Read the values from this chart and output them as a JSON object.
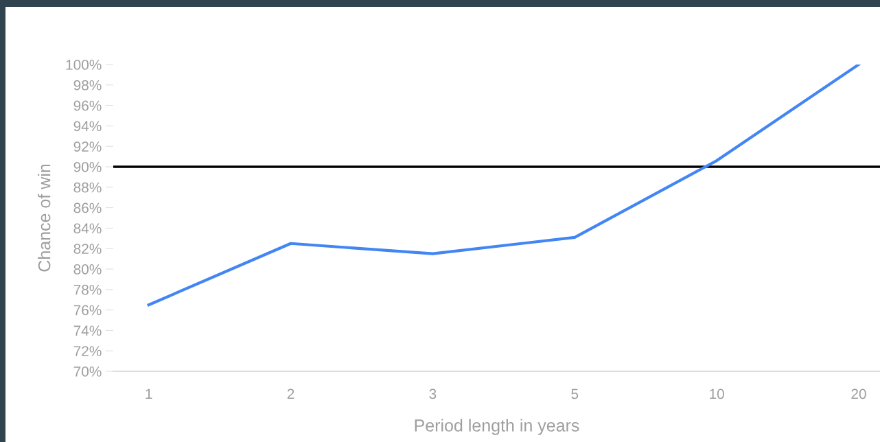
{
  "chart_data": {
    "type": "line",
    "xlabel": "Period length in years",
    "ylabel": "Chance of win",
    "categories": [
      "1",
      "2",
      "3",
      "5",
      "10",
      "20"
    ],
    "series": [
      {
        "color": "#4285f4",
        "values": [
          76.5,
          82.5,
          81.5,
          83.1,
          90.6,
          100
        ]
      }
    ],
    "ylim": [
      70,
      100
    ],
    "yticks": [
      {
        "value": 70,
        "label": "70%"
      },
      {
        "value": 72,
        "label": "72%"
      },
      {
        "value": 74,
        "label": "74%"
      },
      {
        "value": 76,
        "label": "76%"
      },
      {
        "value": 78,
        "label": "78%"
      },
      {
        "value": 80,
        "label": "80%"
      },
      {
        "value": 82,
        "label": "82%"
      },
      {
        "value": 84,
        "label": "84%"
      },
      {
        "value": 86,
        "label": "86%"
      },
      {
        "value": 88,
        "label": "88%"
      },
      {
        "value": 90,
        "label": "90%"
      },
      {
        "value": 92,
        "label": "92%"
      },
      {
        "value": 94,
        "label": "94%"
      },
      {
        "value": 96,
        "label": "96%"
      },
      {
        "value": 98,
        "label": "98%"
      },
      {
        "value": 100,
        "label": "100%"
      }
    ],
    "ref_lines": [
      {
        "axis": "y",
        "value": 90,
        "color": "#000000"
      }
    ],
    "grid": false,
    "legend": false,
    "marker": "none",
    "line_style": "solid"
  }
}
